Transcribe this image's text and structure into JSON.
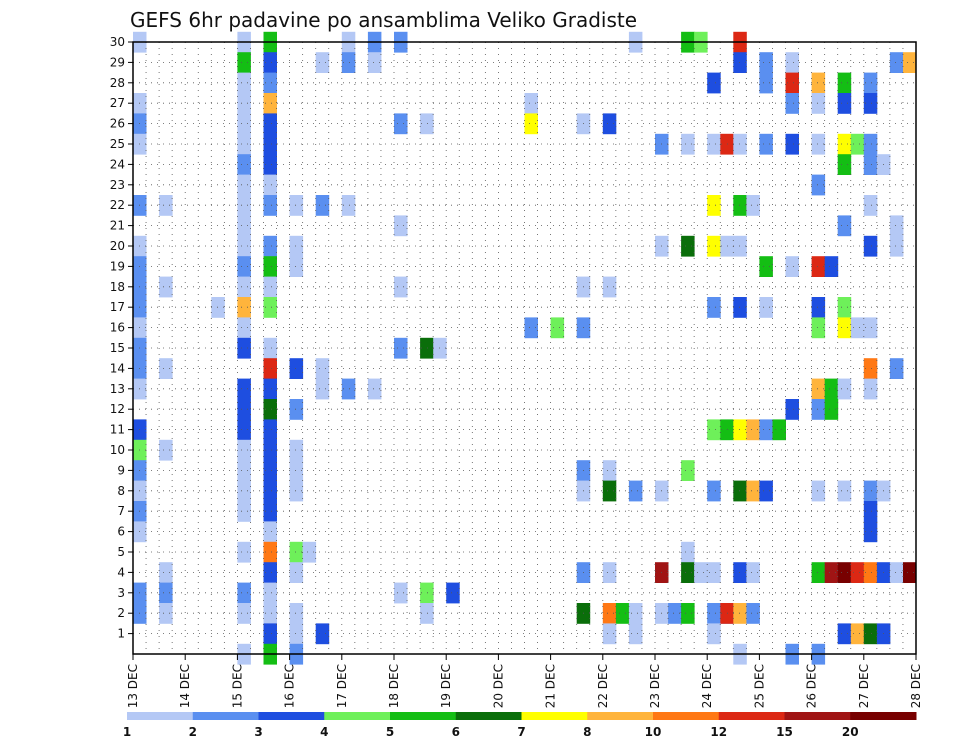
{
  "chart_data": {
    "type": "heatmap",
    "title": "GEFS 6hr padavine po ansamblima Veliko Gradiste",
    "xlabel": "",
    "ylabel": "",
    "x_ticks": [
      "13 DEC",
      "14 DEC",
      "15 DEC",
      "16 DEC",
      "17 DEC",
      "18 DEC",
      "19 DEC",
      "20 DEC",
      "21 DEC",
      "22 DEC",
      "23 DEC",
      "24 DEC",
      "25 DEC",
      "26 DEC",
      "27 DEC",
      "28 DEC"
    ],
    "y_ticks": [
      1,
      2,
      3,
      4,
      5,
      6,
      7,
      8,
      9,
      10,
      11,
      12,
      13,
      14,
      15,
      16,
      17,
      18,
      19,
      20,
      21,
      22,
      23,
      24,
      25,
      26,
      27,
      28,
      29,
      30
    ],
    "x_range": [
      0,
      60
    ],
    "y_range": [
      0,
      30
    ],
    "grid": "dotted",
    "legend": {
      "position": "bottom",
      "levels": [
        "1",
        "2",
        "3",
        "4",
        "5",
        "6",
        "7",
        "8",
        "10",
        "12",
        "15",
        "20"
      ],
      "colors": [
        "#b4c8f5",
        "#5a8ff0",
        "#1e4ee0",
        "#6ef05a",
        "#14be14",
        "#0a6e0a",
        "#ffff00",
        "#ffb43c",
        "#ff7814",
        "#dc2814",
        "#a01414",
        "#780000"
      ]
    },
    "cells": [
      [
        0,
        30,
        0
      ],
      [
        5,
        30,
        4
      ],
      [
        4,
        30,
        0
      ],
      [
        8,
        30,
        0
      ],
      [
        9,
        30,
        1
      ],
      [
        10,
        30,
        1
      ],
      [
        19,
        30,
        0
      ],
      [
        21,
        30,
        4
      ],
      [
        21,
        30,
        3
      ],
      [
        23,
        30,
        9
      ],
      [
        4,
        29,
        4
      ],
      [
        5,
        29,
        2
      ],
      [
        7,
        29,
        0
      ],
      [
        8,
        29,
        1
      ],
      [
        9,
        29,
        0
      ],
      [
        23,
        29,
        2
      ],
      [
        24,
        29,
        1
      ],
      [
        25,
        29,
        0
      ],
      [
        29,
        29,
        1
      ],
      [
        29,
        29,
        7
      ],
      [
        4,
        28,
        0
      ],
      [
        5,
        28,
        1
      ],
      [
        22,
        28,
        2
      ],
      [
        24,
        28,
        1
      ],
      [
        25,
        28,
        9
      ],
      [
        26,
        28,
        7
      ],
      [
        27,
        28,
        4
      ],
      [
        28,
        28,
        1
      ],
      [
        0,
        27,
        0
      ],
      [
        4,
        27,
        0
      ],
      [
        5,
        27,
        7
      ],
      [
        15,
        27,
        0
      ],
      [
        25,
        27,
        1
      ],
      [
        26,
        27,
        0
      ],
      [
        27,
        27,
        2
      ],
      [
        28,
        27,
        2
      ],
      [
        0,
        26,
        1
      ],
      [
        4,
        26,
        0
      ],
      [
        5,
        26,
        2
      ],
      [
        10,
        26,
        1
      ],
      [
        11,
        26,
        0
      ],
      [
        15,
        26,
        6
      ],
      [
        17,
        26,
        0
      ],
      [
        18,
        26,
        2
      ],
      [
        0,
        25,
        0
      ],
      [
        4,
        25,
        0
      ],
      [
        5,
        25,
        2
      ],
      [
        20,
        25,
        1
      ],
      [
        21,
        25,
        0
      ],
      [
        22,
        25,
        0
      ],
      [
        22,
        25,
        9
      ],
      [
        23,
        25,
        0
      ],
      [
        24,
        25,
        1
      ],
      [
        25,
        25,
        2
      ],
      [
        26,
        25,
        0
      ],
      [
        27,
        25,
        6
      ],
      [
        27,
        25,
        3
      ],
      [
        28,
        25,
        1
      ],
      [
        4,
        24,
        1
      ],
      [
        5,
        24,
        2
      ],
      [
        27,
        24,
        4
      ],
      [
        28,
        24,
        1
      ],
      [
        28,
        24,
        0
      ],
      [
        4,
        23,
        0
      ],
      [
        5,
        23,
        0
      ],
      [
        26,
        23,
        1
      ],
      [
        0,
        22,
        1
      ],
      [
        1,
        22,
        0
      ],
      [
        4,
        22,
        0
      ],
      [
        5,
        22,
        1
      ],
      [
        6,
        22,
        0
      ],
      [
        7,
        22,
        1
      ],
      [
        8,
        22,
        0
      ],
      [
        22,
        22,
        6
      ],
      [
        23,
        22,
        4
      ],
      [
        23,
        22,
        0
      ],
      [
        28,
        22,
        0
      ],
      [
        4,
        21,
        0
      ],
      [
        10,
        21,
        0
      ],
      [
        27,
        21,
        1
      ],
      [
        29,
        21,
        0
      ],
      [
        0,
        20,
        0
      ],
      [
        4,
        20,
        0
      ],
      [
        5,
        20,
        1
      ],
      [
        6,
        20,
        0
      ],
      [
        20,
        20,
        0
      ],
      [
        21,
        20,
        5
      ],
      [
        22,
        20,
        6
      ],
      [
        22,
        20,
        0
      ],
      [
        23,
        20,
        0
      ],
      [
        28,
        20,
        2
      ],
      [
        29,
        20,
        0
      ],
      [
        0,
        19,
        1
      ],
      [
        4,
        19,
        1
      ],
      [
        5,
        19,
        4
      ],
      [
        6,
        19,
        0
      ],
      [
        24,
        19,
        4
      ],
      [
        25,
        19,
        0
      ],
      [
        26,
        19,
        9
      ],
      [
        26,
        19,
        2
      ],
      [
        0,
        18,
        1
      ],
      [
        1,
        18,
        0
      ],
      [
        4,
        18,
        0
      ],
      [
        5,
        18,
        0
      ],
      [
        10,
        18,
        0
      ],
      [
        17,
        18,
        0
      ],
      [
        18,
        18,
        0
      ],
      [
        0,
        17,
        1
      ],
      [
        3,
        17,
        0
      ],
      [
        4,
        17,
        7
      ],
      [
        5,
        17,
        3
      ],
      [
        22,
        17,
        1
      ],
      [
        23,
        17,
        2
      ],
      [
        24,
        17,
        0
      ],
      [
        26,
        17,
        2
      ],
      [
        27,
        17,
        3
      ],
      [
        0,
        16,
        0
      ],
      [
        4,
        16,
        0
      ],
      [
        15,
        16,
        1
      ],
      [
        16,
        16,
        3
      ],
      [
        17,
        16,
        1
      ],
      [
        26,
        16,
        3
      ],
      [
        27,
        16,
        6
      ],
      [
        27,
        16,
        0
      ],
      [
        28,
        16,
        0
      ],
      [
        0,
        15,
        1
      ],
      [
        4,
        15,
        2
      ],
      [
        5,
        15,
        0
      ],
      [
        10,
        15,
        1
      ],
      [
        11,
        15,
        5
      ],
      [
        11,
        15,
        0
      ],
      [
        0,
        14,
        1
      ],
      [
        1,
        14,
        0
      ],
      [
        5,
        14,
        9
      ],
      [
        6,
        14,
        2
      ],
      [
        7,
        14,
        0
      ],
      [
        28,
        14,
        8
      ],
      [
        29,
        14,
        1
      ],
      [
        0,
        13,
        0
      ],
      [
        4,
        13,
        2
      ],
      [
        5,
        13,
        2
      ],
      [
        7,
        13,
        0
      ],
      [
        8,
        13,
        1
      ],
      [
        9,
        13,
        0
      ],
      [
        26,
        13,
        7
      ],
      [
        26,
        13,
        4
      ],
      [
        27,
        13,
        0
      ],
      [
        28,
        13,
        0
      ],
      [
        4,
        12,
        2
      ],
      [
        5,
        12,
        5
      ],
      [
        6,
        12,
        1
      ],
      [
        25,
        12,
        2
      ],
      [
        26,
        12,
        1
      ],
      [
        26,
        12,
        4
      ],
      [
        0,
        11,
        2
      ],
      [
        4,
        11,
        2
      ],
      [
        5,
        11,
        2
      ],
      [
        22,
        11,
        3
      ],
      [
        22,
        11,
        4
      ],
      [
        23,
        11,
        6
      ],
      [
        23,
        11,
        7
      ],
      [
        24,
        11,
        1
      ],
      [
        24,
        11,
        4
      ],
      [
        0,
        10,
        3
      ],
      [
        1,
        10,
        0
      ],
      [
        4,
        10,
        0
      ],
      [
        5,
        10,
        2
      ],
      [
        6,
        10,
        0
      ],
      [
        0,
        9,
        1
      ],
      [
        4,
        9,
        0
      ],
      [
        5,
        9,
        2
      ],
      [
        6,
        9,
        0
      ],
      [
        17,
        9,
        1
      ],
      [
        18,
        9,
        0
      ],
      [
        21,
        9,
        3
      ],
      [
        0,
        8,
        0
      ],
      [
        4,
        8,
        0
      ],
      [
        5,
        8,
        2
      ],
      [
        6,
        8,
        0
      ],
      [
        17,
        8,
        0
      ],
      [
        18,
        8,
        5
      ],
      [
        19,
        8,
        1
      ],
      [
        20,
        8,
        0
      ],
      [
        22,
        8,
        1
      ],
      [
        23,
        8,
        5
      ],
      [
        23,
        8,
        7
      ],
      [
        24,
        8,
        2
      ],
      [
        26,
        8,
        0
      ],
      [
        27,
        8,
        0
      ],
      [
        28,
        8,
        1
      ],
      [
        28,
        8,
        0
      ],
      [
        0,
        7,
        1
      ],
      [
        4,
        7,
        0
      ],
      [
        5,
        7,
        2
      ],
      [
        28,
        7,
        2
      ],
      [
        0,
        6,
        0
      ],
      [
        5,
        6,
        0
      ],
      [
        28,
        6,
        2
      ],
      [
        4,
        5,
        0
      ],
      [
        5,
        5,
        8
      ],
      [
        6,
        5,
        3
      ],
      [
        6,
        5,
        0
      ],
      [
        21,
        5,
        0
      ],
      [
        1,
        4,
        0
      ],
      [
        5,
        4,
        2
      ],
      [
        6,
        4,
        0
      ],
      [
        17,
        4,
        1
      ],
      [
        18,
        4,
        0
      ],
      [
        20,
        4,
        10
      ],
      [
        21,
        4,
        5
      ],
      [
        21,
        4,
        0
      ],
      [
        22,
        4,
        0
      ],
      [
        23,
        4,
        2
      ],
      [
        23,
        4,
        0
      ],
      [
        26,
        4,
        4
      ],
      [
        26,
        4,
        10
      ],
      [
        27,
        4,
        11
      ],
      [
        27,
        4,
        9
      ],
      [
        28,
        4,
        8
      ],
      [
        28,
        4,
        2
      ],
      [
        29,
        4,
        0
      ],
      [
        29,
        4,
        11
      ],
      [
        0,
        3,
        1
      ],
      [
        1,
        3,
        1
      ],
      [
        4,
        3,
        1
      ],
      [
        5,
        3,
        0
      ],
      [
        10,
        3,
        0
      ],
      [
        11,
        3,
        3
      ],
      [
        12,
        3,
        2
      ],
      [
        0,
        2,
        1
      ],
      [
        1,
        2,
        0
      ],
      [
        4,
        2,
        0
      ],
      [
        5,
        2,
        0
      ],
      [
        6,
        2,
        0
      ],
      [
        11,
        2,
        0
      ],
      [
        17,
        2,
        5
      ],
      [
        18,
        2,
        8
      ],
      [
        18,
        2,
        4
      ],
      [
        19,
        2,
        0
      ],
      [
        20,
        2,
        0
      ],
      [
        20,
        2,
        1
      ],
      [
        21,
        2,
        4
      ],
      [
        22,
        2,
        1
      ],
      [
        22,
        2,
        1
      ],
      [
        22,
        2,
        9
      ],
      [
        23,
        2,
        7
      ],
      [
        23,
        2,
        1
      ],
      [
        5,
        1,
        2
      ],
      [
        6,
        1,
        0
      ],
      [
        7,
        1,
        2
      ],
      [
        18,
        1,
        0
      ],
      [
        19,
        1,
        0
      ],
      [
        22,
        1,
        0
      ],
      [
        27,
        1,
        2
      ],
      [
        27,
        1,
        7
      ],
      [
        28,
        1,
        5
      ],
      [
        28,
        1,
        2
      ],
      [
        4,
        0,
        0
      ],
      [
        5,
        0,
        4
      ],
      [
        6,
        0,
        1
      ],
      [
        23,
        0,
        0
      ],
      [
        25,
        0,
        1
      ],
      [
        26,
        0,
        1
      ]
    ]
  }
}
